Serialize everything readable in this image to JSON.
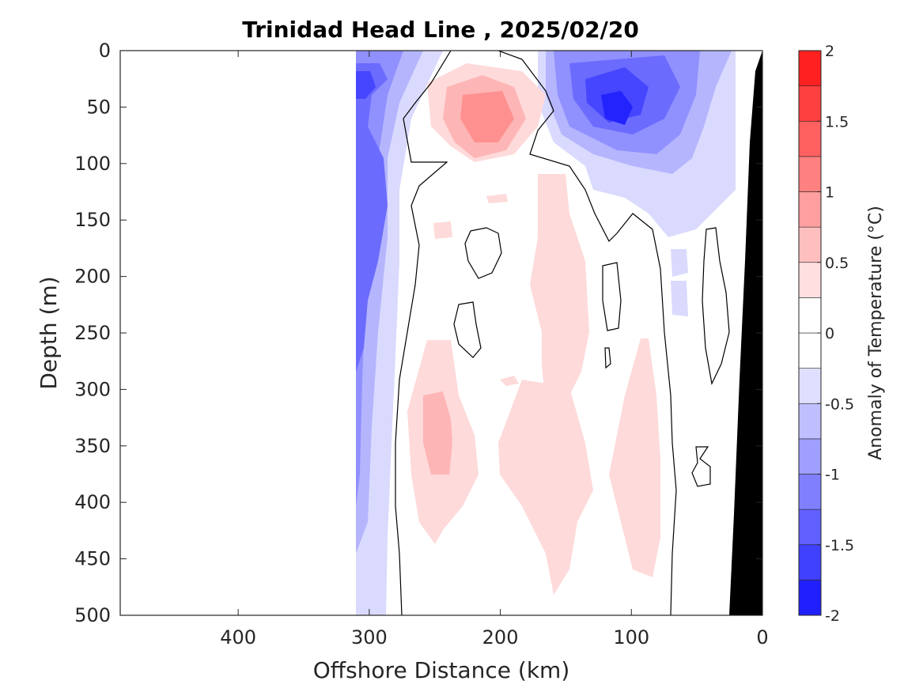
{
  "chart_data": {
    "type": "heatmap",
    "title": "Trinidad Head Line , 2025/02/20",
    "xlabel": "Offshore Distance (km)",
    "ylabel": "Depth (m)",
    "xlim": [
      490,
      0
    ],
    "ylim": [
      500,
      0
    ],
    "x_ticks": [
      "400",
      "300",
      "200",
      "100",
      "0"
    ],
    "y_ticks": [
      "0",
      "50",
      "100",
      "150",
      "200",
      "250",
      "300",
      "350",
      "400",
      "450",
      "500"
    ],
    "x_tick_values": [
      400,
      300,
      200,
      100,
      0
    ],
    "y_tick_values": [
      0,
      50,
      100,
      150,
      200,
      250,
      300,
      350,
      400,
      450,
      500
    ],
    "colorbar": {
      "label": "Anomaly of Temperature (°C)",
      "range": [
        -2,
        2
      ],
      "step": 0.25,
      "tick_labels": [
        "2",
        "1.5",
        "1",
        "0.5",
        "0",
        "-0.5",
        "-1",
        "-1.5",
        "-2"
      ],
      "tick_values": [
        2,
        1.5,
        1,
        0.5,
        0,
        -0.5,
        -1,
        -1.5,
        -2
      ]
    },
    "data_extent_km": [
      310,
      0
    ],
    "regions": [
      {
        "name": "blue-core-nearshore",
        "anomaly": -1.6,
        "center_km": 110,
        "center_depth_m": 50
      },
      {
        "name": "blue-upper-nearshore",
        "anomaly": -0.8,
        "center_km": 115,
        "center_depth_m": 60
      },
      {
        "name": "blue-offshore-edge",
        "anomaly": -1.1,
        "center_km": 305,
        "center_depth_m": 200
      },
      {
        "name": "red-core-upper",
        "anomaly": 0.8,
        "center_km": 205,
        "center_depth_m": 55
      },
      {
        "name": "red-core-deep",
        "anomaly": 0.8,
        "center_km": 250,
        "center_depth_m": 340
      },
      {
        "name": "pink-deep-offshore",
        "anomaly": 0.4,
        "center_km": 240,
        "center_depth_m": 330
      },
      {
        "name": "pink-mid-column",
        "anomaly": 0.3,
        "center_km": 150,
        "center_depth_m": 330
      },
      {
        "name": "pink-nearshore-column",
        "anomaly": 0.3,
        "center_km": 100,
        "center_depth_m": 360
      }
    ],
    "grid": false,
    "colors": {
      "deep_blue": "#0000ff",
      "deep_red": "#ff0000",
      "bathymetry": "#000000",
      "zero_contour": "#000000"
    }
  }
}
